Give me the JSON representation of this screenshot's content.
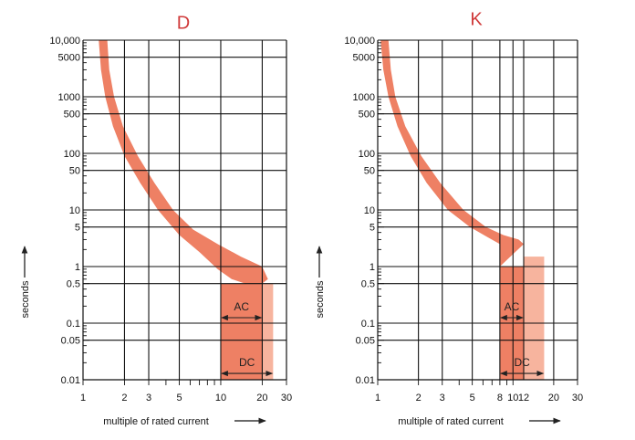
{
  "chart_data": [
    {
      "type": "area",
      "title": "D",
      "xlabel": "multiple of rated current",
      "ylabel": "seconds",
      "x_scale": "log",
      "y_scale": "log",
      "xlim": [
        1,
        30
      ],
      "ylim": [
        0.01,
        10000
      ],
      "grid": true,
      "x_ticks": [
        1,
        2,
        3,
        5,
        10,
        20,
        30
      ],
      "y_ticks": [
        0.01,
        0.05,
        0.1,
        0.5,
        1,
        5,
        10,
        50,
        100,
        500,
        1000,
        5000,
        10000
      ],
      "y_tick_labels": [
        "0.01",
        "0.05",
        "0.1",
        "0.5",
        "1",
        "5",
        "10",
        "50",
        "100",
        "500",
        "1000",
        "5000",
        "10,000"
      ],
      "series": [
        {
          "lower": [
            [
              1.3,
              10000
            ],
            [
              1.35,
              3000
            ],
            [
              1.45,
              1000
            ],
            [
              1.65,
              300
            ],
            [
              2.0,
              90
            ],
            [
              2.6,
              30
            ],
            [
              3.5,
              10
            ],
            [
              5.0,
              3.6
            ],
            [
              7.0,
              1.8
            ],
            [
              9.5,
              0.9
            ],
            [
              12.0,
              0.6
            ],
            [
              15.0,
              0.5
            ],
            [
              20.0,
              0.5
            ]
          ],
          "upper": [
            [
              1.5,
              10000
            ],
            [
              1.55,
              3000
            ],
            [
              1.68,
              1000
            ],
            [
              1.95,
              300
            ],
            [
              2.5,
              90
            ],
            [
              3.3,
              30
            ],
            [
              4.5,
              10
            ],
            [
              6.3,
              4.5
            ],
            [
              9.5,
              2.5
            ],
            [
              14.0,
              1.5
            ],
            [
              20.0,
              1.0
            ],
            [
              22.0,
              0.6
            ]
          ],
          "ac_tail": {
            "x_from": 10,
            "x_to": 20,
            "y_from": 0.5,
            "y_to": 0.01
          },
          "dc_tail": {
            "x_from": 20,
            "x_to": 24,
            "y_from": 0.5,
            "y_to": 0.01
          },
          "color": "#ee8064",
          "dc_color": "#f7b49e"
        }
      ],
      "annotations": [
        {
          "text": "AC",
          "x_from": 10,
          "x_to": 20,
          "y": 0.1
        },
        {
          "text": "DC",
          "x_from": 10,
          "x_to": 24,
          "y": 0.015
        }
      ]
    },
    {
      "type": "area",
      "title": "K",
      "xlabel": "multiple of rated current",
      "ylabel": "seconds",
      "x_scale": "log",
      "y_scale": "log",
      "xlim": [
        1,
        30
      ],
      "ylim": [
        0.01,
        10000
      ],
      "grid": true,
      "x_ticks": [
        1,
        2,
        3,
        5,
        8,
        10,
        12,
        20,
        30
      ],
      "y_ticks": [
        0.01,
        0.05,
        0.1,
        0.5,
        1,
        5,
        10,
        50,
        100,
        500,
        1000,
        5000,
        10000
      ],
      "y_tick_labels": [
        "0.01",
        "0.05",
        "0.1",
        "0.5",
        "1",
        "5",
        "10",
        "50",
        "100",
        "500",
        "1000",
        "5000",
        "10,000"
      ],
      "series": [
        {
          "lower": [
            [
              1.05,
              10000
            ],
            [
              1.1,
              3000
            ],
            [
              1.2,
              1000
            ],
            [
              1.4,
              300
            ],
            [
              1.75,
              90
            ],
            [
              2.3,
              30
            ],
            [
              3.3,
              10
            ],
            [
              4.8,
              5
            ],
            [
              6.5,
              3.3
            ],
            [
              8.0,
              2.5
            ],
            [
              8.0,
              1
            ]
          ],
          "upper": [
            [
              1.2,
              10000
            ],
            [
              1.25,
              3000
            ],
            [
              1.35,
              1000
            ],
            [
              1.6,
              300
            ],
            [
              2.1,
              90
            ],
            [
              2.9,
              30
            ],
            [
              4.3,
              10
            ],
            [
              6.3,
              5
            ],
            [
              8.5,
              3.6
            ],
            [
              11.0,
              3.0
            ],
            [
              12.0,
              2.5
            ]
          ],
          "ac_tail": {
            "x_from": 8,
            "x_to": 12,
            "y_from": 1,
            "y_to": 0.01
          },
          "dc_tail": {
            "x_from": 12,
            "x_to": 17,
            "y_from": 1.5,
            "y_to": 0.01
          },
          "color": "#ee8064",
          "dc_color": "#f7b49e"
        }
      ],
      "annotations": [
        {
          "text": "AC",
          "x_from": 8,
          "x_to": 12,
          "y": 0.1
        },
        {
          "text": "DC",
          "x_from": 8,
          "x_to": 17,
          "y": 0.015
        }
      ]
    }
  ]
}
